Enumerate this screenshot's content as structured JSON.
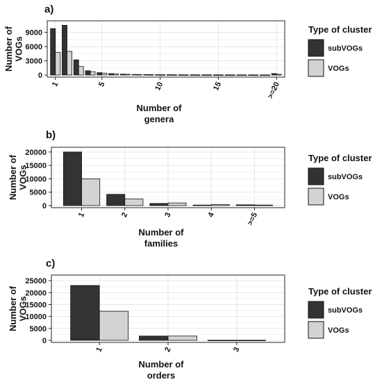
{
  "colors": {
    "subVOGs": "#333333",
    "VOGs": "#d3d3d3",
    "panel_bg": "#ffffff",
    "grid": "#e6e6e6"
  },
  "chart_data": [
    {
      "type": "bar",
      "panel_label": "a)",
      "xlabel_lines": [
        "Number of",
        "genera"
      ],
      "ylabel_lines": [
        "Number of",
        "VOGs"
      ],
      "legend": {
        "title": "Type of cluster",
        "placement": "right",
        "entries": [
          "subVOGs",
          "VOGs"
        ]
      },
      "categories": [
        "1",
        "2",
        "3",
        "4",
        "5",
        "6",
        "7",
        "8",
        "9",
        "10",
        "11",
        "12",
        "13",
        "14",
        "15",
        "16",
        "17",
        "18",
        "19",
        ">=20"
      ],
      "tick_labels": [
        "1",
        "5",
        "10",
        "15",
        ">=20"
      ],
      "series": [
        {
          "name": "subVOGs",
          "values": [
            9800,
            10500,
            3200,
            900,
            500,
            300,
            180,
            120,
            100,
            80,
            70,
            60,
            50,
            40,
            40,
            35,
            30,
            30,
            25,
            300
          ]
        },
        {
          "name": "VOGs",
          "values": [
            4800,
            5000,
            1800,
            700,
            400,
            250,
            150,
            100,
            80,
            60,
            50,
            40,
            35,
            30,
            30,
            25,
            20,
            20,
            20,
            150
          ]
        }
      ],
      "yticks": [
        "0",
        "3000",
        "6000",
        "9000"
      ],
      "ylim": [
        0,
        11000
      ],
      "grid": true
    },
    {
      "type": "bar",
      "panel_label": "b)",
      "xlabel_lines": [
        "Number of",
        "families"
      ],
      "ylabel_lines": [
        "Number of",
        "VOGs"
      ],
      "legend": {
        "title": "Type of cluster",
        "placement": "right",
        "entries": [
          "subVOGs",
          "VOGs"
        ]
      },
      "categories": [
        "1",
        "2",
        "3",
        "4",
        ">=5"
      ],
      "tick_labels": [
        "1",
        "2",
        "3",
        "4",
        ">=5"
      ],
      "series": [
        {
          "name": "subVOGs",
          "values": [
            20000,
            4200,
            800,
            200,
            300
          ]
        },
        {
          "name": "VOGs",
          "values": [
            10000,
            2500,
            1000,
            400,
            200
          ]
        }
      ],
      "yticks": [
        "0",
        "5000",
        "10000",
        "15000",
        "20000"
      ],
      "ylim": [
        0,
        21000
      ],
      "grid": true
    },
    {
      "type": "bar",
      "panel_label": "c)",
      "xlabel_lines": [
        "Number of",
        "orders"
      ],
      "ylabel_lines": [
        "Number of",
        "VOGs"
      ],
      "legend": {
        "title": "Type of cluster",
        "placement": "right",
        "entries": [
          "subVOGs",
          "VOGs"
        ]
      },
      "categories": [
        "1",
        "2",
        "3"
      ],
      "tick_labels": [
        "1",
        "2",
        "3"
      ],
      "series": [
        {
          "name": "subVOGs",
          "values": [
            23000,
            1800,
            50
          ]
        },
        {
          "name": "VOGs",
          "values": [
            12200,
            1800,
            50
          ]
        }
      ],
      "yticks": [
        "0",
        "5000",
        "10000",
        "15000",
        "20000",
        "25000"
      ],
      "ylim": [
        0,
        26500
      ],
      "grid": true
    }
  ]
}
